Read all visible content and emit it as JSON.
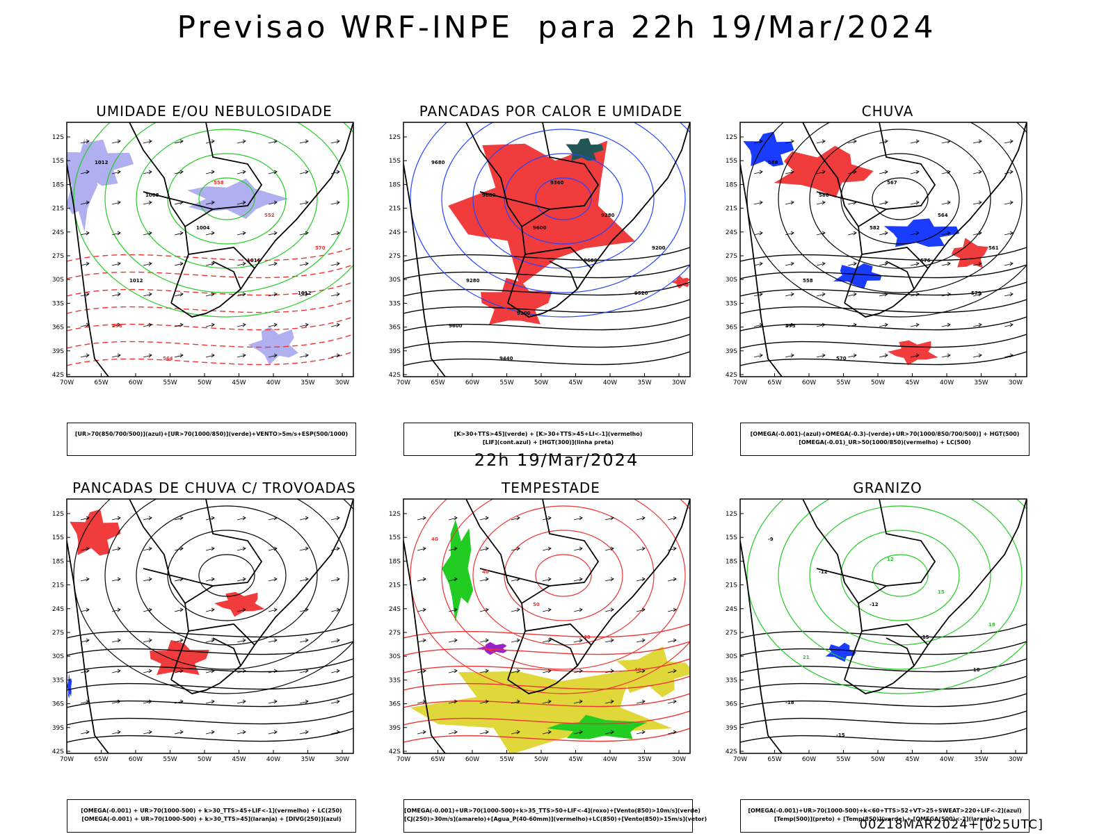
{
  "header": {
    "title": "Previsao WRF-INPE  para 22h 19/Mar/2024"
  },
  "mid_title": "22h 19/Mar/2024",
  "footer": "00Z18MAR2024+[025UTC]",
  "axes": {
    "lat_labels": [
      "12S",
      "15S",
      "18S",
      "21S",
      "24S",
      "27S",
      "30S",
      "33S",
      "36S",
      "39S",
      "42S"
    ],
    "lon_labels": [
      "70W",
      "65W",
      "60W",
      "55W",
      "50W",
      "45W",
      "40W",
      "35W",
      "30W"
    ]
  },
  "panels": [
    {
      "title": "UMIDADE E/OU NEBULOSIDADE",
      "legend": [
        "[UR>70(850/700/500)](azul)+[UR>70(1000/850)](verde)+VENTO>5m/s+ESP(500/1000)"
      ],
      "labels": [
        "1012",
        "1008",
        "1004",
        "1016",
        "1012",
        "576",
        "564",
        "558",
        "552",
        "570",
        "1012"
      ]
    },
    {
      "title": "PANCADAS POR CALOR E UMIDADE",
      "legend": [
        "[K>30+TTS>45](verde) + [K>30+TTS>45+LI<-1](vermelho)",
        "[LIF](cont.azul) + [HGT(300)](linha preta)"
      ],
      "labels": [
        "9680",
        "9680",
        "9600",
        "9680",
        "9520",
        "9600",
        "9440",
        "9360",
        "9280",
        "9200",
        "9280",
        "9200"
      ]
    },
    {
      "title": "CHUVA",
      "legend": [
        "[OMEGA(-0.001)-(azul)+OMEGA(-0.3)-(verde)+UR>70(1000/850/700/500)] + HGT(500)",
        "[OMEGA(-0.01)_UR>50(1000/850)(vermelho) + LC(500)"
      ],
      "labels": [
        "588",
        "588",
        "582",
        "576",
        "579",
        "573",
        "570",
        "567",
        "564",
        "561",
        "558"
      ]
    },
    {
      "title": "PANCADAS DE CHUVA C/ TROVOADAS",
      "legend": [
        "[OMEGA(-0.001) + UR>70(1000-500) + k>30_TTS>45+LIF<-1](vermelho) + LC(250)",
        "[OMEGA(-0.001) + UR>70(1000-500) + k>30_TTS>45](laranja) + [DIVG(250)](azul)"
      ],
      "labels": []
    },
    {
      "title": "TEMPESTADE",
      "legend": [
        "[OMEGA(-0.001)+UR>70(1000-500)+k>35_TTS>50+LIF<-4](roxo)+[Vento(850)>10m/s](verde)",
        "[CJ(250)>30m/s](amarelo)+[Agua_P(40-60mm)](vermelho)+LC(850)+[Vento(850)>15m/s](vetor)"
      ],
      "labels": [
        "40",
        "40",
        "50",
        "40",
        "40"
      ]
    },
    {
      "title": "GRANIZO",
      "legend": [
        "[OMEGA(-0.001)+UR>70(1000-500)+k<60+TTS>52+VT>25+SWEAT>220+LIF<-2](azul)",
        "[Temp(500)](preto) + [Temp(850)](verde) + [OMEGA(500)<-2](laranja)"
      ],
      "labels": [
        "-9",
        "-12",
        "-12",
        "-15",
        "-18",
        "-18",
        "-15",
        "12",
        "15",
        "18",
        "21"
      ]
    }
  ]
}
